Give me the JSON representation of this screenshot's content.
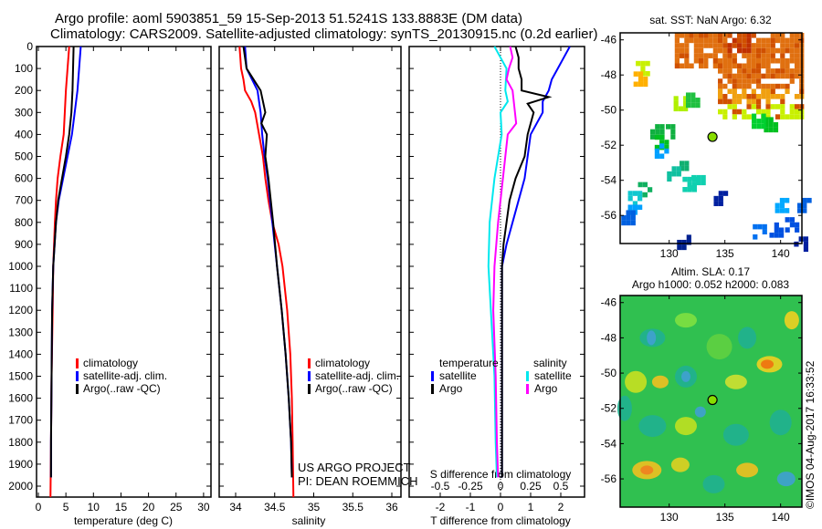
{
  "title": {
    "line1": "Argo profile: aoml 5903851_59 15-Sep-2013 51.5241S 133.8883E (DM data)",
    "line2": "Climatology: CARS2009. Satellite-adjusted climatology: synTS_20130915.nc (0.2d earlier)"
  },
  "footer": {
    "project": "US ARGO PROJECT",
    "pi": "PI: DEAN ROEMMICH",
    "timestamp": "©IMOS 04-Aug-2017 16:33:52"
  },
  "colors": {
    "climatology": "#ff0000",
    "satellite": "#0000ff",
    "argo": "#000000",
    "sal_satellite": "#00e8ee",
    "sal_argo": "#ff00ff"
  },
  "chart_data": [
    {
      "type": "line",
      "id": "temperature",
      "xlabel": "temperature (deg C)",
      "xlim": [
        -1,
        31
      ],
      "ylim": [
        0,
        2050
      ],
      "xticks": [
        0,
        5,
        10,
        15,
        20,
        25,
        30
      ],
      "yticks": [
        0,
        100,
        200,
        300,
        400,
        500,
        600,
        700,
        800,
        900,
        1000,
        1100,
        1200,
        1300,
        1400,
        1500,
        1600,
        1700,
        1800,
        1900,
        2000
      ],
      "legend": [
        "climatology",
        "satellite-adj. clim.",
        "Argo(..raw -QC)"
      ],
      "series": [
        {
          "name": "climatology",
          "depth": [
            0,
            100,
            200,
            300,
            400,
            500,
            600,
            700,
            800,
            1000,
            1200,
            1500,
            1800,
            2050
          ],
          "values": [
            5.6,
            5.3,
            5.0,
            4.8,
            4.6,
            4.0,
            3.5,
            3.2,
            3.0,
            2.7,
            2.6,
            2.4,
            2.3,
            2.2
          ]
        },
        {
          "name": "satellite-adj. clim.",
          "depth": [
            0,
            100,
            200,
            300,
            400,
            500,
            600,
            700,
            800,
            1000,
            1200,
            1500,
            1800,
            1960
          ],
          "values": [
            7.7,
            7.4,
            7.1,
            6.6,
            6.1,
            5.3,
            4.5,
            3.7,
            3.2,
            2.7,
            2.5,
            2.4,
            2.3,
            2.3
          ]
        },
        {
          "name": "Argo(..raw -QC)",
          "depth": [
            0,
            100,
            200,
            300,
            400,
            500,
            600,
            700,
            800,
            1000,
            1200,
            1500,
            1800,
            1960
          ],
          "values": [
            6.4,
            6.3,
            6.2,
            6.0,
            5.6,
            5.0,
            4.3,
            3.6,
            3.2,
            2.7,
            2.5,
            2.4,
            2.3,
            2.3
          ]
        }
      ]
    },
    {
      "type": "line",
      "id": "salinity",
      "xlabel": "salinity",
      "xlim": [
        33.8,
        36.05
      ],
      "ylim": [
        0,
        2050
      ],
      "xticks": [
        34,
        34.5,
        35,
        35.5,
        36
      ],
      "legend": [
        "climatology",
        "satellite-adj. clim.",
        "Argo(..raw -QC)"
      ],
      "series": [
        {
          "name": "climatology",
          "depth": [
            0,
            100,
            150,
            200,
            250,
            300,
            400,
            500,
            600,
            700,
            800,
            900,
            1000,
            1200,
            1400,
            1600,
            1800,
            2050
          ],
          "values": [
            34.05,
            34.07,
            34.1,
            34.12,
            34.2,
            34.25,
            34.3,
            34.35,
            34.38,
            34.42,
            34.47,
            34.55,
            34.6,
            34.66,
            34.7,
            34.72,
            34.73,
            34.74
          ]
        },
        {
          "name": "satellite-adj. clim.",
          "depth": [
            0,
            100,
            200,
            300,
            400,
            500,
            600,
            700,
            800,
            900,
            1000,
            1200,
            1400,
            1600,
            1800,
            1960
          ],
          "values": [
            34.12,
            34.14,
            34.28,
            34.32,
            34.34,
            34.37,
            34.41,
            34.44,
            34.47,
            34.5,
            34.53,
            34.59,
            34.64,
            34.68,
            34.71,
            34.72
          ]
        },
        {
          "name": "Argo(..raw -QC)",
          "depth": [
            0,
            50,
            100,
            200,
            250,
            300,
            350,
            400,
            500,
            600,
            700,
            800,
            1000,
            1200,
            1400,
            1600,
            1800,
            1960
          ],
          "values": [
            34.1,
            34.12,
            34.14,
            34.32,
            34.35,
            34.38,
            34.33,
            34.4,
            34.38,
            34.42,
            34.45,
            34.48,
            34.53,
            34.59,
            34.64,
            34.68,
            34.71,
            34.72
          ]
        }
      ]
    },
    {
      "type": "line",
      "id": "difference",
      "xlabel": "T difference from climatology",
      "xlabel2": "S difference from climatology",
      "xlim": [
        -2.7,
        2.9
      ],
      "ylim": [
        0,
        2050
      ],
      "xticks": [
        -2,
        -1,
        0,
        1,
        2
      ],
      "xticks_s": [
        "-0.5",
        "-0.25",
        "0",
        "0.25",
        "0.5"
      ],
      "legend_titles": [
        "temperature",
        "salinity"
      ],
      "legend": [
        "satellite",
        "Argo",
        "satellite",
        "Argo"
      ],
      "series": [
        {
          "name": "T satellite",
          "var": "T",
          "depth": [
            0,
            50,
            100,
            150,
            200,
            250,
            300,
            400,
            500,
            600,
            700,
            800,
            900,
            1000,
            1200,
            1500,
            1960
          ],
          "values": [
            2.3,
            2.1,
            1.9,
            1.7,
            1.6,
            1.4,
            1.4,
            1.0,
            0.9,
            0.8,
            0.6,
            0.4,
            0.2,
            0.05,
            0.05,
            0.05,
            0.05
          ]
        },
        {
          "name": "T Argo",
          "var": "T",
          "depth": [
            0,
            50,
            100,
            150,
            200,
            230,
            260,
            300,
            400,
            500,
            600,
            700,
            800,
            900,
            1000,
            1200,
            1500,
            1960
          ],
          "values": [
            0.5,
            0.6,
            0.6,
            0.7,
            0.7,
            1.6,
            0.9,
            1.1,
            0.9,
            0.8,
            0.5,
            0.3,
            0.2,
            0.1,
            0.05,
            0.05,
            0.05,
            0.05
          ]
        },
        {
          "name": "S satellite",
          "var": "S",
          "depth": [
            0,
            50,
            100,
            200,
            250,
            300,
            400,
            500,
            600,
            700,
            800,
            1000,
            1200,
            1500,
            1800,
            1960
          ],
          "values": [
            -0.05,
            0.0,
            0.05,
            0.04,
            0.06,
            0.0,
            0.01,
            -0.02,
            -0.05,
            -0.07,
            -0.09,
            -0.1,
            -0.08,
            -0.05,
            -0.04,
            -0.03
          ]
        },
        {
          "name": "S Argo",
          "var": "S",
          "depth": [
            0,
            50,
            100,
            150,
            200,
            300,
            350,
            400,
            500,
            600,
            700,
            800,
            1000,
            1200,
            1500,
            1800,
            1960
          ],
          "values": [
            0.08,
            0.1,
            0.07,
            0.05,
            0.1,
            0.12,
            0.13,
            0.06,
            0.04,
            0.02,
            0.0,
            -0.02,
            -0.05,
            -0.06,
            -0.04,
            -0.03,
            -0.02
          ]
        }
      ]
    },
    {
      "type": "heatmap",
      "id": "sst_map",
      "title": "sat. SST: NaN Argo: 6.32",
      "xlim": [
        125.6,
        142
      ],
      "ylim": [
        -57.6,
        -45.6
      ],
      "xticks": [
        130,
        135,
        140
      ],
      "yticks": [
        -46,
        -48,
        -50,
        -52,
        -54,
        -56
      ],
      "argo_position": [
        133.8883,
        -51.5241
      ]
    },
    {
      "type": "heatmap",
      "id": "sla_map",
      "title": "Altim. SLA: 0.17",
      "subtitle": "Argo h1000: 0.052 h2000: 0.083",
      "xlim": [
        125.6,
        142
      ],
      "ylim": [
        -57.6,
        -45.6
      ],
      "xticks": [
        130,
        135,
        140
      ],
      "yticks": [
        -46,
        -48,
        -50,
        -52,
        -54,
        -56
      ],
      "argo_position": [
        133.8883,
        -51.5241
      ]
    }
  ]
}
